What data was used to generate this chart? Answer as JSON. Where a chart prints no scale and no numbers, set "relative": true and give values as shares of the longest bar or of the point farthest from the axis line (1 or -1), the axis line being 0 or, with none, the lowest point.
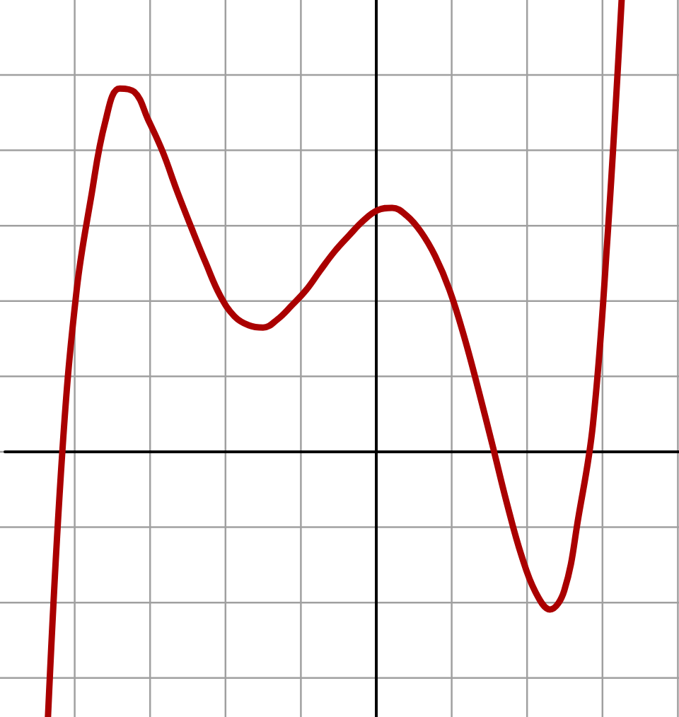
{
  "chart_data": {
    "type": "line",
    "relative": true,
    "grid": true,
    "line_style": "solid",
    "categories": [
      null,
      null,
      null,
      null,
      null,
      null,
      null,
      null,
      null,
      null,
      null,
      null,
      null,
      null,
      null,
      null,
      null,
      null,
      null,
      null,
      null,
      null,
      null,
      null,
      null,
      null,
      null,
      null,
      null,
      null,
      null,
      null,
      null,
      null,
      null,
      null,
      null,
      null,
      null,
      null,
      null,
      null,
      null,
      null,
      null,
      null,
      null,
      null
    ],
    "series": [
      {
        "color": "#aa0000",
        "values": [
          null,
          null,
          null,
          -0.587,
          0,
          0.358,
          0.562,
          0.731,
          0.804,
          0.797,
          0.734,
          0.664,
          0.577,
          0.496,
          0.418,
          0.346,
          0.3,
          0.28,
          0.275,
          0.293,
          0.324,
          0.358,
          0.402,
          0.444,
          0.479,
          0.512,
          0.535,
          0.54,
          0.523,
          0.487,
          0.433,
          0.358,
          0.257,
          0.139,
          0.014,
          -0.114,
          -0.228,
          -0.311,
          -0.349,
          -0.307,
          -0.142,
          0.061,
          0.468,
          1,
          null,
          null,
          null,
          null
        ]
      }
    ]
  }
}
